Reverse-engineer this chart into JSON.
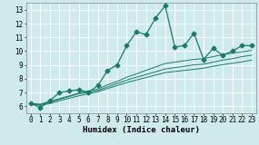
{
  "title": "",
  "xlabel": "Humidex (Indice chaleur)",
  "ylabel": "",
  "bg_color": "#ceeaea",
  "grid_color": "#ffffff",
  "line_color": "#1a7a6a",
  "xlim": [
    -0.5,
    23.5
  ],
  "ylim": [
    5.5,
    13.5
  ],
  "yticks": [
    6,
    7,
    8,
    9,
    10,
    11,
    12,
    13
  ],
  "xticks": [
    0,
    1,
    2,
    3,
    4,
    5,
    6,
    7,
    8,
    9,
    10,
    11,
    12,
    13,
    14,
    15,
    16,
    17,
    18,
    19,
    20,
    21,
    22,
    23
  ],
  "main_series": [
    6.2,
    5.9,
    6.4,
    7.0,
    7.1,
    7.2,
    7.0,
    7.5,
    8.6,
    9.0,
    10.4,
    11.4,
    11.2,
    12.4,
    13.3,
    10.3,
    10.4,
    11.3,
    9.4,
    10.2,
    9.7,
    10.0,
    10.4,
    10.4
  ],
  "sub_series": [
    [
      6.2,
      6.15,
      6.35,
      6.55,
      6.75,
      6.95,
      7.1,
      7.25,
      7.55,
      7.8,
      8.1,
      8.35,
      8.6,
      8.85,
      9.1,
      9.2,
      9.3,
      9.4,
      9.45,
      9.6,
      9.75,
      9.85,
      9.95,
      10.05
    ],
    [
      6.2,
      6.1,
      6.3,
      6.5,
      6.7,
      6.9,
      7.0,
      7.15,
      7.4,
      7.65,
      7.9,
      8.1,
      8.3,
      8.5,
      8.7,
      8.8,
      8.9,
      9.0,
      9.05,
      9.2,
      9.35,
      9.45,
      9.6,
      9.7
    ],
    [
      6.2,
      6.05,
      6.2,
      6.4,
      6.58,
      6.75,
      6.9,
      7.05,
      7.28,
      7.5,
      7.72,
      7.9,
      8.08,
      8.26,
      8.44,
      8.52,
      8.6,
      8.68,
      8.76,
      8.9,
      9.02,
      9.12,
      9.22,
      9.35
    ]
  ],
  "marker_size": 2.5,
  "linewidth_main": 0.9,
  "linewidth_sub": 0.7,
  "xlabel_fontsize": 6.5,
  "tick_fontsize": 5.5
}
